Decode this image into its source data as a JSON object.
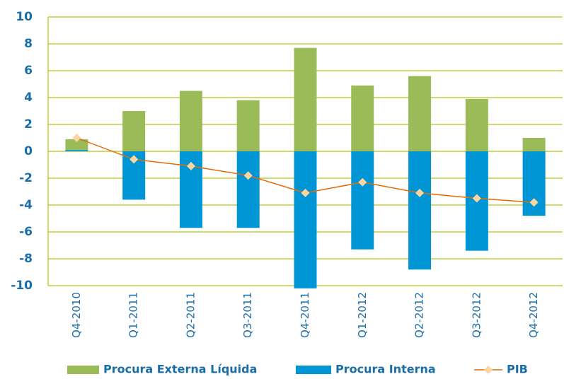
{
  "chart_data": {
    "type": "stacked_bar_line",
    "categories": [
      "Q4-2010",
      "Q1-2011",
      "Q2-2011",
      "Q3-2011",
      "Q4-2011",
      "Q1-2012",
      "Q2-2012",
      "Q3-2012",
      "Q4-2012"
    ],
    "series": [
      {
        "name": "Procura Externa Líquida",
        "color": "#9bbb59",
        "kind": "bar",
        "values": [
          0.8,
          3.0,
          4.5,
          3.8,
          7.7,
          4.9,
          5.6,
          3.9,
          1.0
        ]
      },
      {
        "name": "Procura Interna",
        "color": "#0096d6",
        "kind": "bar",
        "values": [
          0.1,
          -3.6,
          -5.7,
          -5.7,
          -10.2,
          -7.3,
          -8.8,
          -7.4,
          -4.8
        ]
      },
      {
        "name": "PIB",
        "color": "#e36c09",
        "marker_color": "#fcd5a0",
        "kind": "line",
        "values": [
          1.0,
          -0.6,
          -1.1,
          -1.8,
          -3.1,
          -2.3,
          -3.1,
          -3.5,
          -3.8
        ]
      }
    ],
    "ylim": [
      -10,
      10
    ],
    "yticks": [
      -10,
      -8,
      -6,
      -4,
      -2,
      0,
      2,
      4,
      6,
      8,
      10
    ],
    "grid": true,
    "legend": "bottom"
  }
}
